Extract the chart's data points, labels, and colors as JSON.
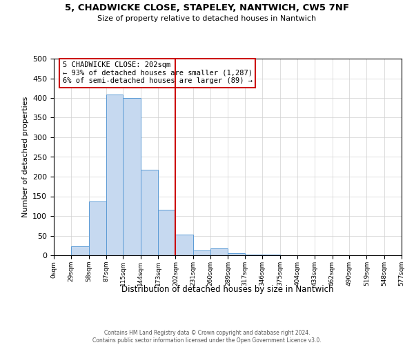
{
  "title": "5, CHADWICKE CLOSE, STAPELEY, NANTWICH, CW5 7NF",
  "subtitle": "Size of property relative to detached houses in Nantwich",
  "xlabel": "Distribution of detached houses by size in Nantwich",
  "ylabel": "Number of detached properties",
  "bar_edges": [
    0,
    29,
    58,
    87,
    115,
    144,
    173,
    202,
    231,
    260,
    289,
    317,
    346,
    375,
    404,
    433,
    462,
    490,
    519,
    548,
    577
  ],
  "bar_heights": [
    0,
    22,
    137,
    408,
    400,
    217,
    116,
    52,
    12,
    17,
    6,
    2,
    1,
    0,
    0,
    0,
    0,
    0,
    0,
    0
  ],
  "bar_color": "#c6d9f0",
  "bar_edgecolor": "#5b9bd5",
  "vline_x": 202,
  "vline_color": "#cc0000",
  "annotation_title": "5 CHADWICKE CLOSE: 202sqm",
  "annotation_line2": "← 93% of detached houses are smaller (1,287)",
  "annotation_line3": "6% of semi-detached houses are larger (89) →",
  "annotation_box_edgecolor": "#cc0000",
  "ylim": [
    0,
    500
  ],
  "yticks": [
    0,
    50,
    100,
    150,
    200,
    250,
    300,
    350,
    400,
    450,
    500
  ],
  "tick_labels": [
    "0sqm",
    "29sqm",
    "58sqm",
    "87sqm",
    "115sqm",
    "144sqm",
    "173sqm",
    "202sqm",
    "231sqm",
    "260sqm",
    "289sqm",
    "317sqm",
    "346sqm",
    "375sqm",
    "404sqm",
    "433sqm",
    "462sqm",
    "490sqm",
    "519sqm",
    "548sqm",
    "577sqm"
  ],
  "footer_line1": "Contains HM Land Registry data © Crown copyright and database right 2024.",
  "footer_line2": "Contains public sector information licensed under the Open Government Licence v3.0.",
  "background_color": "#ffffff",
  "grid_color": "#d0d0d0"
}
